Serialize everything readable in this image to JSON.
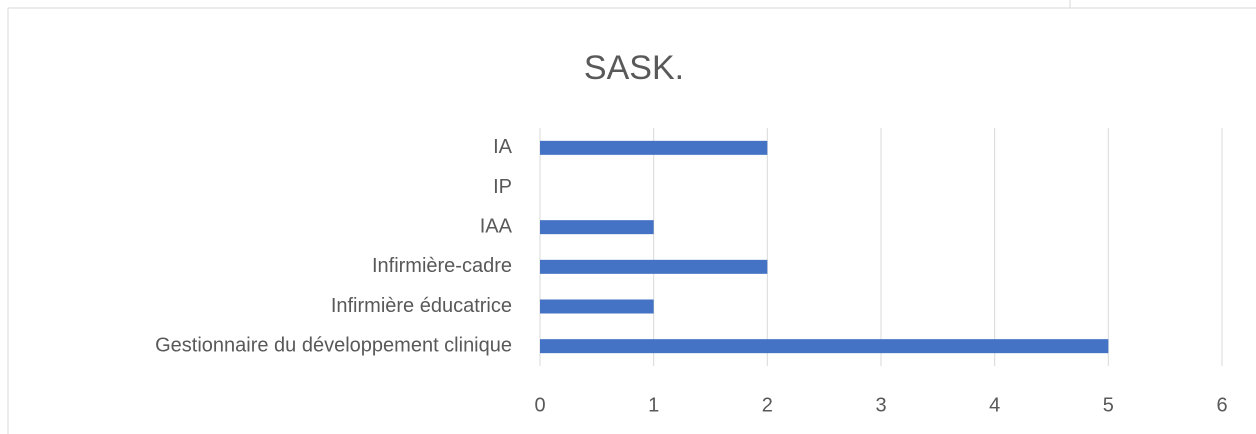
{
  "chart_data": {
    "type": "bar",
    "horizontal": true,
    "title": "SASK.",
    "categories": [
      "IA",
      "IP",
      "IAA",
      "Infirmière-cadre",
      "Infirmière éducatrice",
      "Gestionnaire du développement clinique"
    ],
    "values": [
      2,
      0,
      1,
      2,
      1,
      5
    ],
    "color": "#4472c4",
    "xlim": [
      0,
      6
    ],
    "xticks": [
      0,
      1,
      2,
      3,
      4,
      5,
      6
    ],
    "grid": true
  }
}
